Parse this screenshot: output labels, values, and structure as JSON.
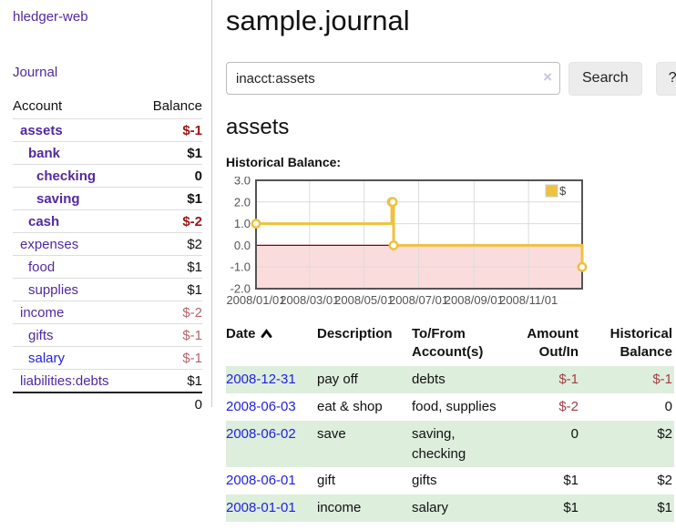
{
  "app_title": "hledger-web",
  "sidebar": {
    "journal_link": "Journal",
    "accounts": {
      "header": {
        "account": "Account",
        "balance": "Balance"
      },
      "rows": [
        {
          "name": "assets",
          "balance": "$-1",
          "depth": 1,
          "bold": true,
          "neg": "strong",
          "link_color": "purple"
        },
        {
          "name": "bank",
          "balance": "$1",
          "depth": 2,
          "bold": true,
          "neg": "none",
          "link_color": "purple"
        },
        {
          "name": "checking",
          "balance": "0",
          "depth": 3,
          "bold": true,
          "neg": "none",
          "link_color": "purple"
        },
        {
          "name": "saving",
          "balance": "$1",
          "depth": 3,
          "bold": true,
          "neg": "none",
          "link_color": "purple"
        },
        {
          "name": "cash",
          "balance": "$-2",
          "depth": 2,
          "bold": true,
          "neg": "strong",
          "link_color": "purple"
        },
        {
          "name": "expenses",
          "balance": "$2",
          "depth": 1,
          "bold": false,
          "neg": "none",
          "link_color": "purple"
        },
        {
          "name": "food",
          "balance": "$1",
          "depth": 2,
          "bold": false,
          "neg": "none",
          "link_color": "purple"
        },
        {
          "name": "supplies",
          "balance": "$1",
          "depth": 2,
          "bold": false,
          "neg": "none",
          "link_color": "purple"
        },
        {
          "name": "income",
          "balance": "$-2",
          "depth": 1,
          "bold": false,
          "neg": "soft",
          "link_color": "purple"
        },
        {
          "name": "gifts",
          "balance": "$-1",
          "depth": 2,
          "bold": false,
          "neg": "soft",
          "link_color": "purple"
        },
        {
          "name": "salary",
          "balance": "$-1",
          "depth": 2,
          "bold": false,
          "neg": "soft",
          "link_color": "blue"
        },
        {
          "name": "liabilities:debts",
          "balance": "$1",
          "depth": 1,
          "bold": false,
          "neg": "none",
          "link_color": "purple"
        }
      ],
      "total": "0"
    }
  },
  "main": {
    "title": "sample.journal",
    "search": {
      "value": "inacct:assets",
      "clear_icon": "×",
      "search_button": "Search",
      "help_button": "?"
    },
    "account_heading": "assets",
    "chart_label": "Historical Balance:",
    "register": {
      "headers": [
        {
          "label": "Date",
          "align": "left",
          "sorted": "asc"
        },
        {
          "label": "Description",
          "align": "left"
        },
        {
          "label": "To/From Account(s)",
          "align": "left"
        },
        {
          "label": "Amount Out/In",
          "align": "right"
        },
        {
          "label": "Historical Balance",
          "align": "right"
        }
      ],
      "rows": [
        {
          "date": "2008-12-31",
          "description": "pay off",
          "accounts": "debts",
          "amount": "$-1",
          "balance": "$-1",
          "amount_neg": true,
          "balance_neg": true,
          "shaded": true
        },
        {
          "date": "2008-06-03",
          "description": "eat & shop",
          "accounts": "food, supplies",
          "amount": "$-2",
          "balance": "0",
          "amount_neg": true,
          "balance_neg": false,
          "shaded": false
        },
        {
          "date": "2008-06-02",
          "description": "save",
          "accounts": "saving, checking",
          "amount": "0",
          "balance": "$2",
          "amount_neg": false,
          "balance_neg": false,
          "shaded": true
        },
        {
          "date": "2008-06-01",
          "description": "gift",
          "accounts": "gifts",
          "amount": "$1",
          "balance": "$2",
          "amount_neg": false,
          "balance_neg": false,
          "shaded": false
        },
        {
          "date": "2008-01-01",
          "description": "income",
          "accounts": "salary",
          "amount": "$1",
          "balance": "$1",
          "amount_neg": false,
          "balance_neg": false,
          "shaded": true
        }
      ]
    }
  },
  "chart_data": {
    "type": "line",
    "step": true,
    "title": "Historical Balance:",
    "xlabel": "",
    "ylabel": "",
    "legend": "$",
    "legend_position": "top-right",
    "grid": true,
    "xlim": [
      "2008-01-01",
      "2008-12-31"
    ],
    "ylim": [
      -2,
      3
    ],
    "x_tick_dates": [
      "2008-01-01",
      "2008-03-01",
      "2008-05-01",
      "2008-07-01",
      "2008-09-01",
      "2008-11-01"
    ],
    "x_tick_labels": [
      "2008/01/01",
      "2008/03/01",
      "2008/05/01",
      "2008/07/01",
      "2008/09/01",
      "2008/11/01"
    ],
    "y_tick_values": [
      3,
      2,
      1,
      0,
      -1,
      -2
    ],
    "y_tick_labels": [
      "3.0",
      "2.0",
      "1.0",
      "0.0",
      "-1.0",
      "-2.0"
    ],
    "series": [
      {
        "name": "$",
        "points": [
          [
            "2008-01-01",
            1
          ],
          [
            "2008-06-01",
            2
          ],
          [
            "2008-06-02",
            2
          ],
          [
            "2008-06-03",
            0
          ],
          [
            "2008-12-31",
            -1
          ]
        ]
      }
    ]
  },
  "colors": {
    "link_purple": "#5229a0",
    "link_blue": "#2222dd",
    "negative_strong": "#9d1313",
    "negative_soft": "#b5646c",
    "table_negative": "#a33f44",
    "row_green": "#ddeedd",
    "divider": "#cccccc",
    "chart_gold": "#edc240",
    "chart_negative_fill": "#fbdcdc",
    "chart_zero_line": "#8b0000",
    "chart_axis_text": "#545454",
    "chart_border": "#545454",
    "chart_grid": "#dcdcdc"
  }
}
